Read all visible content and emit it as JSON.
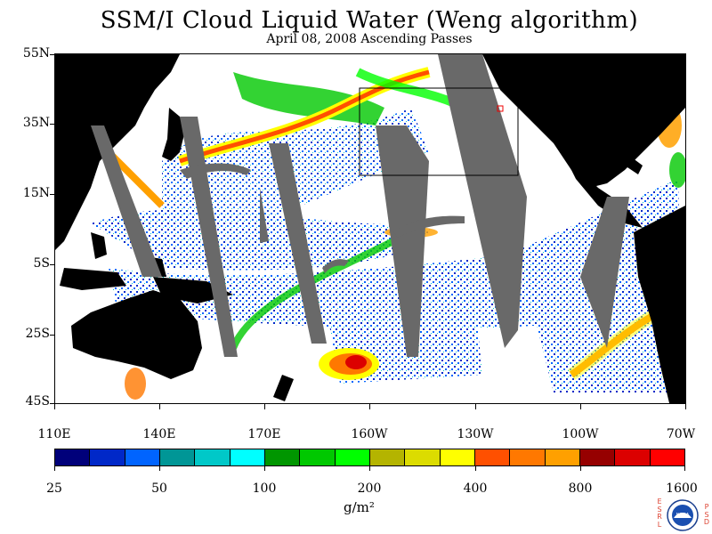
{
  "title": "SSM/I Cloud Liquid Water (Weng algorithm)",
  "subtitle": "April 08, 2008  Ascending Passes",
  "lat_labels": [
    "55N",
    "35N",
    "15N",
    "5S",
    "25S",
    "45S"
  ],
  "lon_labels": [
    "110E",
    "140E",
    "170E",
    "160W",
    "130W",
    "100W",
    "70W"
  ],
  "colorbar": {
    "colors": [
      "#00007a",
      "#0028c8",
      "#0064ff",
      "#009696",
      "#00c8c8",
      "#00ffff",
      "#009600",
      "#00c800",
      "#00ff00",
      "#b4b400",
      "#dcdc00",
      "#ffff00",
      "#ff5000",
      "#ff7800",
      "#ffa000",
      "#960000",
      "#dc0000",
      "#ff0000"
    ],
    "labels": [
      "25",
      "50",
      "100",
      "200",
      "400",
      "800",
      "1600"
    ],
    "units": "g/m²"
  },
  "map_colors": {
    "land": "#000000",
    "ocean": "#ffffff",
    "missing_swath": "#696969",
    "box_outline": "#000000"
  },
  "logo": {
    "text": "NOAA",
    "left_text": "ESRL",
    "right_text": "PSD"
  }
}
